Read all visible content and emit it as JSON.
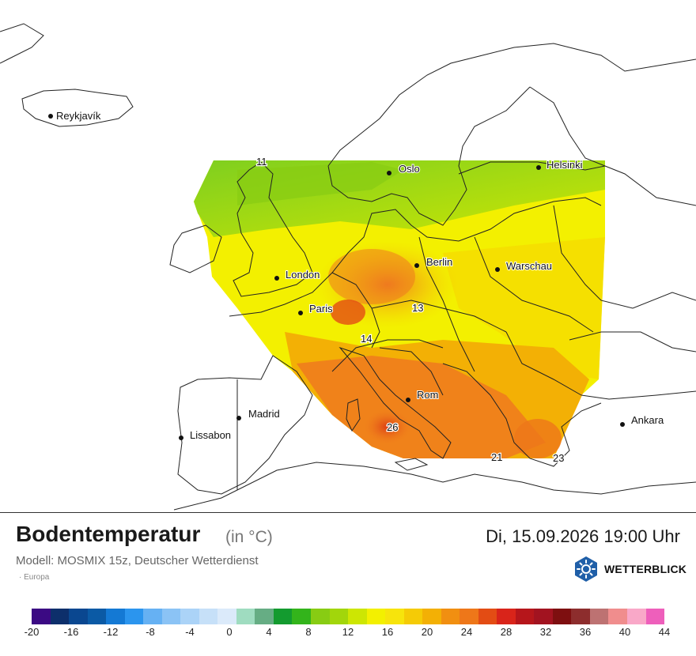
{
  "map": {
    "cities": [
      {
        "name": "Reykjavík"
      },
      {
        "name": "Oslo"
      },
      {
        "name": "Helsinki"
      },
      {
        "name": "London"
      },
      {
        "name": "Berlin"
      },
      {
        "name": "Warschau"
      },
      {
        "name": "Paris"
      },
      {
        "name": "Rom"
      },
      {
        "name": "Madrid"
      },
      {
        "name": "Lissabon"
      },
      {
        "name": "Ankara"
      }
    ],
    "value_labels": [
      "11",
      "13",
      "14",
      "26",
      "21",
      "23"
    ]
  },
  "header": {
    "title": "Bodentemperatur",
    "unit": "(in °C)",
    "datetime": "Di, 15.09.2026 19:00 Uhr",
    "model": "Modell: MOSMIX 15z, Deutscher Wetterdienst",
    "region": "· Europa"
  },
  "brand": {
    "name": "WETTERBLICK",
    "icon": "sun-logo-icon",
    "color": "#1f5fa8"
  },
  "legend": {
    "colors": [
      "#3b0a83",
      "#0d2f6b",
      "#0a4790",
      "#0b5aa5",
      "#1479d4",
      "#2b95ee",
      "#66b1f3",
      "#8bc3f5",
      "#abd3f7",
      "#c6e0f8",
      "#dbeafa",
      "#9fdcc0",
      "#66ad84",
      "#139b2f",
      "#33b41b",
      "#88cc13",
      "#a2d60b",
      "#cde603",
      "#f3f000",
      "#f7e40c",
      "#f5cb06",
      "#f3b005",
      "#f18f11",
      "#ee7719",
      "#e34c14",
      "#d9241a",
      "#b6161b",
      "#a21320",
      "#7e0f10",
      "#8d2d2d",
      "#bd7272",
      "#f08d8d",
      "#f9a8c8",
      "#ee5fbb"
    ],
    "ticks": [
      "-20",
      "-16",
      "-12",
      "-8",
      "-4",
      "0",
      "4",
      "8",
      "12",
      "16",
      "20",
      "24",
      "28",
      "32",
      "36",
      "40",
      "44"
    ]
  }
}
